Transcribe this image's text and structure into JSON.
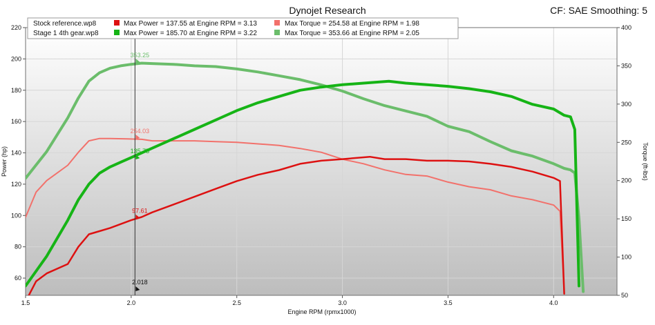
{
  "header": {
    "title": "Dynojet Research",
    "right_text": "CF: SAE Smoothing: 5"
  },
  "legend": {
    "rows": [
      {
        "run": "Stock reference.wp8",
        "power_label": "Max Power = 137.55 at Engine RPM = 3.13",
        "torque_label": "Max Torque = 254.58 at Engine RPM = 1.98",
        "power_color": "#dd1111",
        "torque_color": "#f2716b"
      },
      {
        "run": "Stage 1 4th gear.wp8",
        "power_label": "Max Power = 185.70 at Engine RPM = 3.22",
        "torque_label": "Max Torque = 353.66 at Engine RPM = 2.05",
        "power_color": "#16b416",
        "torque_color": "#6bbd6b"
      }
    ]
  },
  "cursor": {
    "x": 2.018,
    "label": "2.018",
    "values": [
      {
        "series": "stage1_torque",
        "label": "353.25",
        "value": 353.25,
        "axis": "right",
        "color": "#6bbd6b"
      },
      {
        "series": "stock_torque",
        "label": "254.03",
        "value": 254.03,
        "axis": "right",
        "color": "#f2716b"
      },
      {
        "series": "stage1_power",
        "label": "135.75",
        "value": 135.75,
        "axis": "left",
        "color": "#16b416"
      },
      {
        "series": "stock_power",
        "label": "97.61",
        "value": 97.61,
        "axis": "left",
        "color": "#dd1111"
      }
    ]
  },
  "chart_data": {
    "type": "line",
    "xlabel": "Engine RPM (rpmx1000)",
    "ylabel": "Power (hp)",
    "y2label": "Torque (ft-lbs)",
    "xlim": [
      1.5,
      4.3
    ],
    "ylim": [
      49,
      220
    ],
    "y2lim": [
      50,
      400
    ],
    "xticks": [
      "1.5",
      "2.0",
      "2.5",
      "3.0",
      "3.5",
      "4.0"
    ],
    "yticks": [
      "60",
      "80",
      "100",
      "120",
      "140",
      "160",
      "180",
      "200",
      "220"
    ],
    "y2ticks": [
      "50",
      "100",
      "150",
      "200",
      "250",
      "300",
      "350",
      "400"
    ],
    "grid": true,
    "series": [
      {
        "key": "stage1_torque",
        "axis": "right",
        "color": "#6bbd6b",
        "width": 4,
        "x": [
          1.5,
          1.6,
          1.7,
          1.75,
          1.8,
          1.85,
          1.9,
          1.95,
          2.0,
          2.05,
          2.1,
          2.2,
          2.3,
          2.4,
          2.5,
          2.6,
          2.7,
          2.8,
          2.9,
          3.0,
          3.1,
          3.2,
          3.3,
          3.4,
          3.5,
          3.6,
          3.7,
          3.8,
          3.9,
          4.0,
          4.05,
          4.08,
          4.1,
          4.12,
          4.14
        ],
        "y": [
          203,
          238,
          282,
          308,
          330,
          341,
          347,
          350,
          352,
          353.5,
          353,
          352,
          350,
          349,
          346,
          342,
          337,
          332,
          325,
          317,
          307,
          298,
          291,
          284,
          271,
          264,
          251,
          239,
          232,
          222,
          216,
          214,
          210,
          150,
          55
        ]
      },
      {
        "key": "stock_torque",
        "axis": "right",
        "color": "#f2716b",
        "width": 2,
        "x": [
          1.5,
          1.55,
          1.6,
          1.7,
          1.75,
          1.8,
          1.85,
          1.9,
          1.98,
          2.05,
          2.1,
          2.2,
          2.3,
          2.4,
          2.5,
          2.6,
          2.7,
          2.8,
          2.9,
          3.0,
          3.1,
          3.2,
          3.3,
          3.4,
          3.5,
          3.6,
          3.7,
          3.8,
          3.9,
          4.0,
          4.03,
          4.05
        ],
        "y": [
          152,
          185,
          200,
          220,
          237,
          252,
          255,
          255,
          254.5,
          254,
          252,
          252,
          252,
          251,
          250,
          248,
          246,
          242,
          237,
          228,
          222,
          214,
          208,
          206,
          198,
          192,
          188,
          180,
          175,
          168,
          160,
          52
        ]
      },
      {
        "key": "stage1_power",
        "axis": "left",
        "color": "#16b416",
        "width": 4,
        "x": [
          1.5,
          1.6,
          1.7,
          1.75,
          1.8,
          1.85,
          1.9,
          1.95,
          2.0,
          2.05,
          2.1,
          2.2,
          2.3,
          2.4,
          2.5,
          2.6,
          2.7,
          2.8,
          2.9,
          3.0,
          3.1,
          3.22,
          3.3,
          3.4,
          3.5,
          3.6,
          3.7,
          3.8,
          3.9,
          4.0,
          4.05,
          4.08,
          4.1,
          4.12
        ],
        "y": [
          55,
          74,
          97,
          110,
          120,
          127,
          131,
          134,
          137,
          140,
          143,
          149,
          155,
          161,
          167,
          172,
          176,
          180,
          182,
          183.5,
          184.5,
          185.7,
          184.5,
          183.5,
          182.5,
          181,
          179,
          176,
          171,
          168,
          164,
          163,
          155,
          55
        ]
      },
      {
        "key": "stock_power",
        "axis": "left",
        "color": "#dd1111",
        "width": 2.5,
        "x": [
          1.5,
          1.55,
          1.6,
          1.7,
          1.75,
          1.8,
          1.85,
          1.9,
          2.0,
          2.05,
          2.1,
          2.2,
          2.3,
          2.4,
          2.5,
          2.6,
          2.7,
          2.8,
          2.9,
          3.0,
          3.13,
          3.2,
          3.3,
          3.4,
          3.5,
          3.6,
          3.7,
          3.8,
          3.9,
          4.0,
          4.03,
          4.05
        ],
        "y": [
          45,
          58,
          63,
          69,
          80,
          88,
          90,
          92,
          97,
          99,
          102,
          107,
          112,
          117,
          122,
          126,
          129,
          133,
          135,
          136,
          137.5,
          136,
          136,
          135,
          135,
          134.5,
          133,
          131,
          128,
          124,
          122,
          50
        ]
      }
    ]
  }
}
